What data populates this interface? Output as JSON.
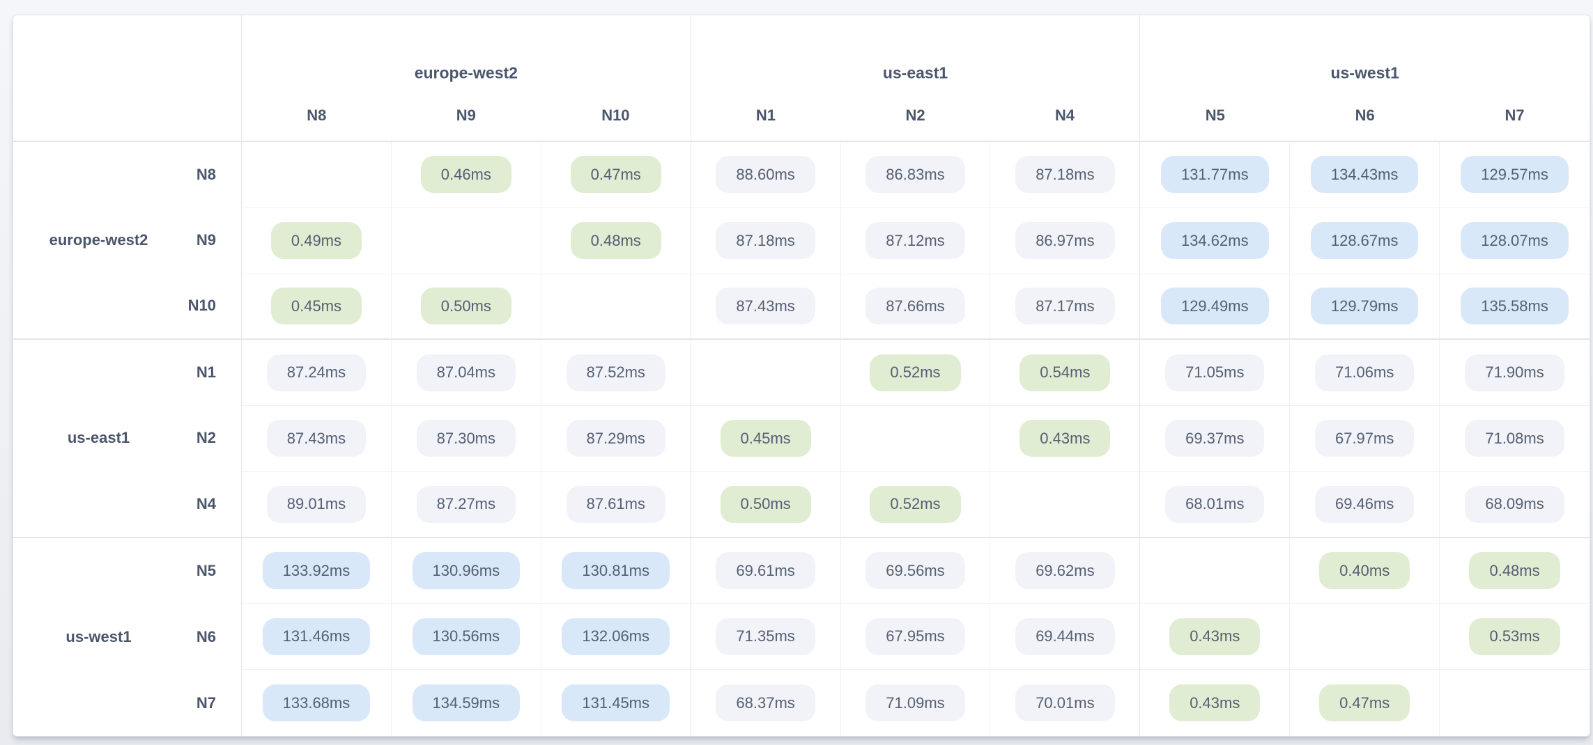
{
  "colors": {
    "page_background": "#f1f3f7",
    "card_background": "#ffffff",
    "pill_low_latency_green": "#e0edd2",
    "pill_mid_latency_gray": "#f1f3f8",
    "pill_high_latency_blue": "#d8e8f8",
    "label_text": "#4b566c",
    "value_text": "#555f73",
    "grid_line_light": "#eef1f5",
    "grid_line_strong": "#e1e5ec"
  },
  "latency_matrix": {
    "column_groups": [
      {
        "label": "europe-west2",
        "nodes": [
          "N8",
          "N9",
          "N10"
        ]
      },
      {
        "label": "us-east1",
        "nodes": [
          "N1",
          "N2",
          "N4"
        ]
      },
      {
        "label": "us-west1",
        "nodes": [
          "N5",
          "N6",
          "N7"
        ]
      }
    ],
    "row_groups": [
      {
        "label": "europe-west2",
        "rows": [
          {
            "node": "N8",
            "cells": [
              "",
              "0.46ms",
              "0.47ms",
              "88.60ms",
              "86.83ms",
              "87.18ms",
              "131.77ms",
              "134.43ms",
              "129.57ms"
            ]
          },
          {
            "node": "N9",
            "cells": [
              "0.49ms",
              "",
              "0.48ms",
              "87.18ms",
              "87.12ms",
              "86.97ms",
              "134.62ms",
              "128.67ms",
              "128.07ms"
            ]
          },
          {
            "node": "N10",
            "cells": [
              "0.45ms",
              "0.50ms",
              "",
              "87.43ms",
              "87.66ms",
              "87.17ms",
              "129.49ms",
              "129.79ms",
              "135.58ms"
            ]
          }
        ]
      },
      {
        "label": "us-east1",
        "rows": [
          {
            "node": "N1",
            "cells": [
              "87.24ms",
              "87.04ms",
              "87.52ms",
              "",
              "0.52ms",
              "0.54ms",
              "71.05ms",
              "71.06ms",
              "71.90ms"
            ]
          },
          {
            "node": "N2",
            "cells": [
              "87.43ms",
              "87.30ms",
              "87.29ms",
              "0.45ms",
              "",
              "0.43ms",
              "69.37ms",
              "67.97ms",
              "71.08ms"
            ]
          },
          {
            "node": "N4",
            "cells": [
              "89.01ms",
              "87.27ms",
              "87.61ms",
              "0.50ms",
              "0.52ms",
              "",
              "68.01ms",
              "69.46ms",
              "68.09ms"
            ]
          }
        ]
      },
      {
        "label": "us-west1",
        "rows": [
          {
            "node": "N5",
            "cells": [
              "133.92ms",
              "130.96ms",
              "130.81ms",
              "69.61ms",
              "69.56ms",
              "69.62ms",
              "",
              "0.40ms",
              "0.48ms"
            ]
          },
          {
            "node": "N6",
            "cells": [
              "131.46ms",
              "130.56ms",
              "132.06ms",
              "71.35ms",
              "67.95ms",
              "69.44ms",
              "0.43ms",
              "",
              "0.53ms"
            ]
          },
          {
            "node": "N7",
            "cells": [
              "133.68ms",
              "134.59ms",
              "131.45ms",
              "68.37ms",
              "71.09ms",
              "70.01ms",
              "0.43ms",
              "0.47ms",
              ""
            ]
          }
        ]
      }
    ]
  }
}
